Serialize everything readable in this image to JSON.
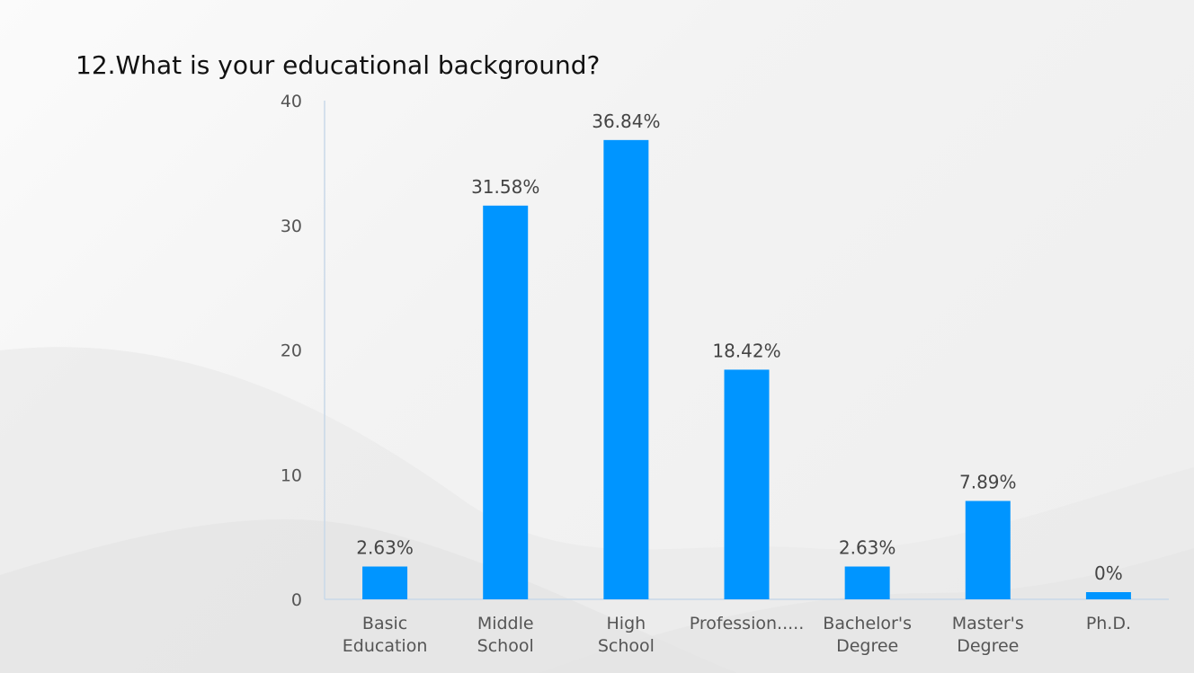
{
  "chart_data": {
    "type": "bar",
    "title": "12.What is your educational background?",
    "xlabel": "",
    "ylabel": "",
    "ylim": [
      0,
      40
    ],
    "yticks": [
      0,
      10,
      20,
      30,
      40
    ],
    "grid": false,
    "legend": "none",
    "categories": [
      [
        "Basic",
        "Education"
      ],
      [
        "Middle",
        "School"
      ],
      [
        "High",
        "School"
      ],
      [
        "Profession....."
      ],
      [
        "Bachelor's",
        "Degree"
      ],
      [
        "Master's",
        "Degree"
      ],
      [
        "Ph.D."
      ]
    ],
    "values": [
      2.63,
      31.58,
      36.84,
      18.42,
      2.63,
      7.89,
      0
    ],
    "data_labels": [
      "2.63%",
      "31.58%",
      "36.84%",
      "18.42%",
      "2.63%",
      "7.89%",
      "0%"
    ],
    "bar_color": "#0095ff",
    "axis_color": "#c8d8e8"
  }
}
